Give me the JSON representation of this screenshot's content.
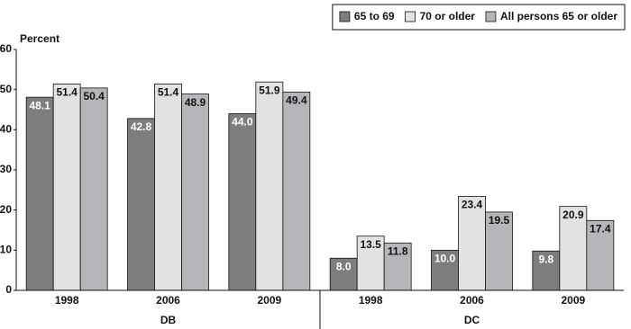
{
  "chart_data": {
    "type": "bar",
    "y_axis_label": "Percent",
    "categories": [
      "1998",
      "2006",
      "2009",
      "1998",
      "2006",
      "2009"
    ],
    "group_labels": [
      "DB",
      "DC"
    ],
    "series": [
      {
        "name": "65 to 69",
        "color": "#7d7d80",
        "label_color": "#ffffff",
        "values": [
          48.1,
          42.8,
          44.0,
          8.0,
          10.0,
          9.8
        ],
        "value_labels": [
          "48.1",
          "42.8",
          "44.0",
          "8.0",
          "10.0",
          "9.8"
        ]
      },
      {
        "name": "70 or older",
        "color": "#e2e2e2",
        "label_color": "#111111",
        "values": [
          51.4,
          51.4,
          51.9,
          13.5,
          23.4,
          20.9
        ]
      },
      {
        "name": "All persons 65 or older",
        "color": "#b6b6ba",
        "label_color": "#111111",
        "values": [
          50.4,
          48.9,
          49.4,
          11.8,
          19.5,
          17.4
        ]
      }
    ],
    "ylim": [
      0,
      60
    ],
    "yticks": [
      0,
      10,
      20,
      30,
      40,
      50,
      60
    ],
    "legend": "top-right"
  }
}
